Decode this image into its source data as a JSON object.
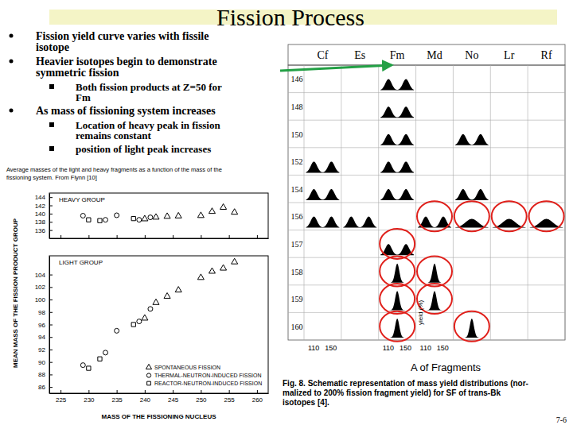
{
  "slide": {
    "title": "Fission Process",
    "bullets": [
      {
        "level": 1,
        "lines": [
          "Fission yield curve varies with fissile",
          "isotope"
        ]
      },
      {
        "level": 1,
        "lines": [
          "Heavier isotopes begin to demonstrate",
          "symmetric fission"
        ]
      },
      {
        "level": 2,
        "lines": [
          "Both fission products at Z=50 for",
          "Fm"
        ]
      },
      {
        "level": 1,
        "lines": [
          "As mass of fissioning system increases"
        ]
      },
      {
        "level": 2,
        "lines": [
          "Location of heavy peak in fission",
          "remains constant"
        ]
      },
      {
        "level": 2,
        "lines": [
          "position of light peak increases"
        ]
      }
    ],
    "page": "7-6"
  },
  "left_caption": [
    "Average masses of the light and heavy fragments as a function of the mass of the",
    "fissioning system.  From Flynn [10]"
  ],
  "chart_data": [
    {
      "type": "scatter",
      "title": "HEAVY GROUP",
      "xlim": [
        223,
        262
      ],
      "xticks": [
        225,
        230,
        235,
        240,
        245,
        250,
        255,
        260
      ],
      "ylim": [
        134,
        145
      ],
      "yticks": [
        136,
        138,
        140,
        142,
        144
      ],
      "tick_labels": "y",
      "series": [
        {
          "marker": "triangle",
          "color": "#000000",
          "x": [
            240,
            242,
            244,
            246,
            250,
            252,
            254,
            256
          ],
          "values": [
            138.7,
            139.1,
            139.3,
            139.4,
            139.5,
            140.5,
            141.5,
            140.3
          ]
        },
        {
          "marker": "circle",
          "color": "#000000",
          "x": [
            229,
            233,
            235,
            239,
            241
          ],
          "values": [
            139.5,
            138.5,
            139.6,
            138.5,
            139.1
          ]
        },
        {
          "marker": "square",
          "color": "#000000",
          "x": [
            230,
            232,
            238
          ],
          "values": [
            138.5,
            138.3,
            138.8
          ]
        }
      ]
    },
    {
      "type": "scatter",
      "title": "LIGHT GROUP",
      "xlabel": "MASS OF THE FISSIONING NUCLEUS",
      "ylabel": "MEAN MASS OF THE FISSION PRODUCT GROUP",
      "xlim": [
        223,
        262
      ],
      "xticks": [
        225,
        230,
        235,
        240,
        245,
        250,
        255,
        260
      ],
      "ylim": [
        85,
        107
      ],
      "yticks": [
        86,
        88,
        90,
        92,
        94,
        96,
        98,
        100,
        102,
        104
      ],
      "legend": "lower right",
      "series": [
        {
          "name": "SPONTANEOUS FISSION",
          "marker": "triangle",
          "color": "#000000",
          "x": [
            240,
            242,
            244,
            246,
            250,
            252,
            254,
            256
          ],
          "values": [
            97,
            99.5,
            100.5,
            101.5,
            103.5,
            104.5,
            105,
            106
          ]
        },
        {
          "name": "THERMAL-NEUTRON-INDUCED FISSION",
          "marker": "circle",
          "color": "#000000",
          "x": [
            229,
            233,
            235,
            239,
            241
          ],
          "values": [
            89.5,
            91.5,
            95,
            96.5,
            98.5
          ]
        },
        {
          "name": "REACTOR-NEUTRON-INDUCED FISSION",
          "marker": "square",
          "color": "#000000",
          "x": [
            230,
            232,
            238
          ],
          "values": [
            89,
            90.5,
            96
          ]
        }
      ]
    }
  ],
  "figure": {
    "columns": [
      "Cf",
      "Es",
      "Fm",
      "Md",
      "No",
      "Lr",
      "Rf"
    ],
    "rows": [
      {
        "label": "146",
        "cells": [
          {
            "column": "Fm",
            "shape": "asymmetric"
          }
        ]
      },
      {
        "label": "148",
        "cells": [
          {
            "column": "Fm",
            "shape": "asymmetric"
          }
        ]
      },
      {
        "label": "150",
        "cells": [
          {
            "column": "Fm",
            "shape": "asymmetric"
          },
          {
            "column": "No",
            "shape": "asymmetric"
          }
        ]
      },
      {
        "label": "152",
        "cells": [
          {
            "column": "Cf",
            "shape": "asymmetric"
          },
          {
            "column": "Fm",
            "shape": "asymmetric"
          }
        ]
      },
      {
        "label": "154",
        "cells": [
          {
            "column": "Cf",
            "shape": "asymmetric"
          },
          {
            "column": "Fm",
            "shape": "asymmetric"
          },
          {
            "column": "No",
            "shape": "asymmetric"
          }
        ]
      },
      {
        "label": "156",
        "cells": [
          {
            "column": "Cf",
            "shape": "asymmetric"
          },
          {
            "column": "Es",
            "shape": "asymmetric"
          },
          {
            "column": "Md",
            "shape": "asymmetric",
            "circled": true
          },
          {
            "column": "No",
            "shape": "broad",
            "circled": true
          },
          {
            "column": "Lr",
            "shape": "broad",
            "circled": true
          },
          {
            "column": "Rf",
            "shape": "broad",
            "circled": true
          }
        ]
      },
      {
        "label": "157",
        "cells": [
          {
            "column": "Fm",
            "shape": "asymmetric",
            "circled": true
          }
        ]
      },
      {
        "label": "158",
        "cells": [
          {
            "column": "Fm",
            "shape": "symmetric",
            "circled": true
          },
          {
            "column": "Md",
            "shape": "symmetric",
            "circled": true
          }
        ]
      },
      {
        "label": "159",
        "cells": [
          {
            "column": "Fm",
            "shape": "symmetric",
            "circled": true
          },
          {
            "column": "Md",
            "shape": "symmetric",
            "circled": true
          }
        ]
      },
      {
        "label": "160",
        "cells": [
          {
            "column": "Fm",
            "shape": "symmetric",
            "circled": true
          },
          {
            "column": "No",
            "shape": "symmetric",
            "circled": true
          }
        ]
      }
    ],
    "yield_label": {
      "text": "yield (%)",
      "column": "Md",
      "row": "159"
    },
    "fragment_axis": {
      "ticks": [
        110,
        150
      ],
      "columns": [
        "Cf",
        "Fm",
        "Md"
      ]
    },
    "xlabel": "A of Fragments",
    "caption": [
      "Fig. 8. Schematic representation of mass yield distributions (nor-",
      "malized to 200% fission fragment yield) for SF of trans-Bk",
      "isotopes [4]."
    ]
  }
}
